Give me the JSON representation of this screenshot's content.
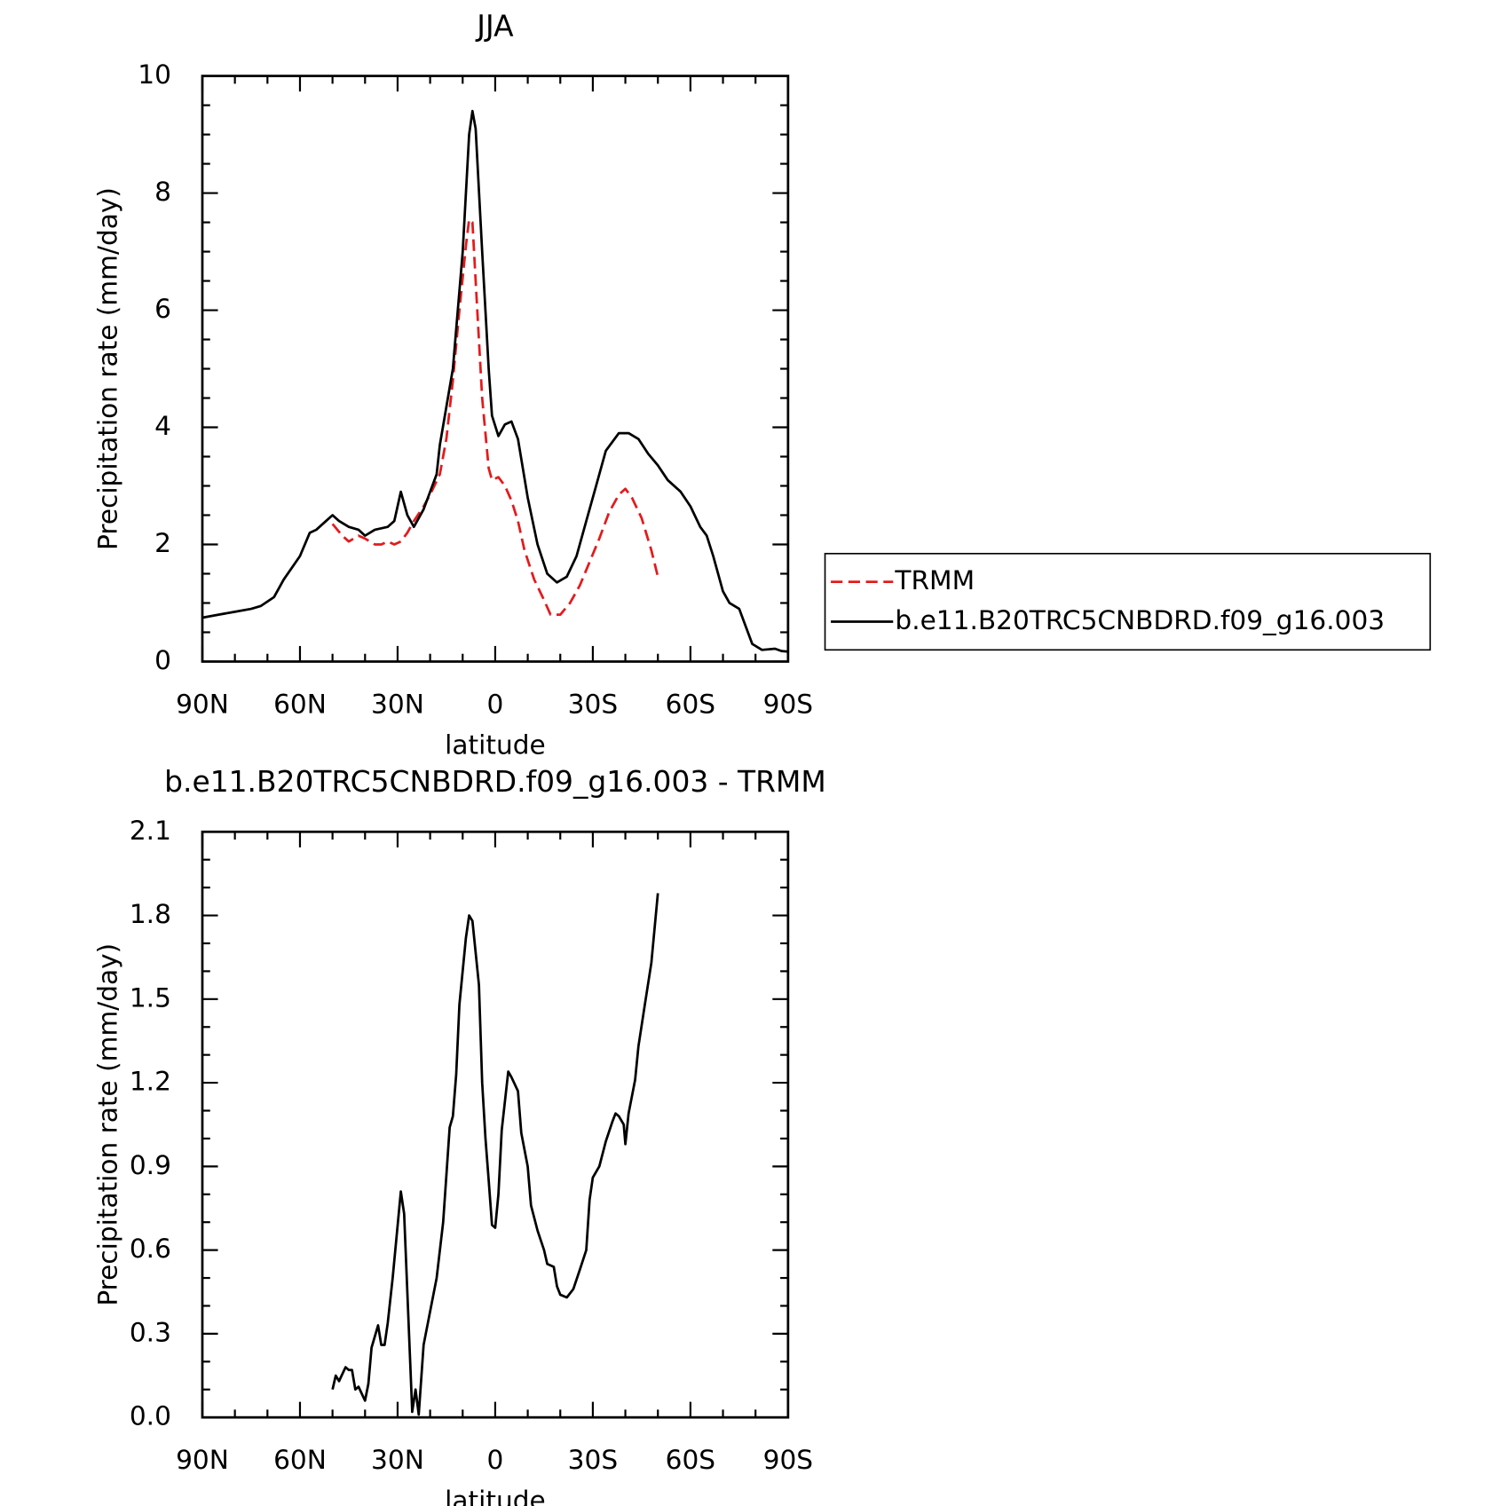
{
  "chart_data": [
    {
      "type": "line",
      "title": "JJA",
      "xlabel": "latitude",
      "ylabel": "Precipitation rate (mm/day)",
      "xlim": [
        90,
        -90
      ],
      "xticks": [
        {
          "value": 90,
          "label": "90N"
        },
        {
          "value": 60,
          "label": "60N"
        },
        {
          "value": 30,
          "label": "30N"
        },
        0,
        {
          "value": -30,
          "label": "30S"
        },
        {
          "value": -60,
          "label": "60S"
        },
        {
          "value": -90,
          "label": "90S"
        }
      ],
      "ylim": [
        0,
        10
      ],
      "yticks": [
        0,
        2,
        4,
        6,
        8,
        10
      ],
      "series": [
        {
          "name": "TRMM",
          "color": "#e41a1c",
          "dash": true,
          "x": [
            50,
            47,
            45,
            42,
            40,
            37,
            35,
            33,
            31,
            29,
            27,
            25,
            22,
            20,
            17,
            15,
            13,
            11,
            9,
            8,
            7,
            6,
            4,
            2,
            1,
            -1,
            -3,
            -5,
            -7,
            -9,
            -12,
            -15,
            -17,
            -20,
            -23,
            -26,
            -29,
            -32,
            -35,
            -38,
            -40,
            -42,
            -45,
            -48,
            -50
          ],
          "values": [
            2.35,
            2.15,
            2.05,
            2.15,
            2.1,
            2.0,
            2.0,
            2.05,
            2.0,
            2.05,
            2.2,
            2.4,
            2.65,
            2.85,
            3.2,
            3.8,
            4.8,
            6.0,
            7.1,
            7.55,
            7.5,
            6.5,
            4.5,
            3.3,
            3.1,
            3.15,
            3.0,
            2.75,
            2.4,
            1.9,
            1.4,
            1.05,
            0.8,
            0.8,
            1.0,
            1.3,
            1.7,
            2.1,
            2.55,
            2.85,
            2.95,
            2.8,
            2.45,
            1.9,
            1.45
          ]
        },
        {
          "name": "b.e11.B20TRC5CNBDRD.f09_g16.003",
          "color": "#000000",
          "dash": false,
          "x": [
            90,
            85,
            80,
            75,
            72,
            68,
            65,
            60,
            57,
            55,
            52,
            50,
            48,
            45,
            42,
            40,
            37,
            33,
            31,
            29,
            27,
            25,
            22,
            18,
            17,
            13,
            10,
            8,
            7,
            6,
            4,
            2,
            1,
            -1,
            -3,
            -5,
            -7,
            -10,
            -13,
            -16,
            -19,
            -22,
            -25,
            -28,
            -31,
            -34,
            -38,
            -41,
            -44,
            -47,
            -50,
            -53,
            -57,
            -60,
            -63,
            -65,
            -67,
            -70,
            -72,
            -75,
            -77,
            -79,
            -82,
            -86,
            -88,
            -90
          ],
          "values": [
            0.75,
            0.8,
            0.85,
            0.9,
            0.95,
            1.1,
            1.4,
            1.8,
            2.2,
            2.25,
            2.4,
            2.5,
            2.4,
            2.3,
            2.25,
            2.15,
            2.25,
            2.3,
            2.4,
            2.9,
            2.5,
            2.3,
            2.6,
            3.2,
            3.7,
            5.0,
            7.0,
            9.0,
            9.4,
            9.1,
            7.0,
            5.0,
            4.2,
            3.85,
            4.05,
            4.1,
            3.8,
            2.8,
            2.0,
            1.5,
            1.35,
            1.45,
            1.8,
            2.4,
            3.0,
            3.6,
            3.9,
            3.9,
            3.8,
            3.55,
            3.35,
            3.1,
            2.9,
            2.65,
            2.3,
            2.15,
            1.8,
            1.2,
            1.0,
            0.9,
            0.6,
            0.3,
            0.2,
            0.22,
            0.18,
            0.17
          ]
        }
      ]
    },
    {
      "type": "line",
      "title": "b.e11.B20TRC5CNBDRD.f09_g16.003 - TRMM",
      "xlabel": "latitude",
      "ylabel": "Precipitation rate (mm/day)",
      "xlim": [
        90,
        -90
      ],
      "xticks": [
        {
          "value": 90,
          "label": "90N"
        },
        {
          "value": 60,
          "label": "60N"
        },
        {
          "value": 30,
          "label": "30N"
        },
        0,
        {
          "value": -30,
          "label": "30S"
        },
        {
          "value": -60,
          "label": "60S"
        },
        {
          "value": -90,
          "label": "90S"
        }
      ],
      "ylim": [
        0,
        2.1
      ],
      "yticks": [
        {
          "value": 0,
          "label": "0.0"
        },
        0.3,
        0.6,
        0.9,
        1.2,
        1.5,
        1.8,
        2.1
      ],
      "series": [
        {
          "color": "#000000",
          "dash": false,
          "x": [
            50,
            49,
            48,
            46,
            45,
            44,
            43,
            42,
            40,
            39,
            38,
            36,
            35,
            34,
            33,
            31.5,
            29,
            28,
            25.5,
            24.5,
            23.5,
            22,
            20,
            18,
            16,
            14,
            13,
            12,
            11,
            9,
            8,
            7,
            5,
            4,
            3,
            2,
            1,
            0,
            -1,
            -2,
            -4,
            -5,
            -7,
            -8,
            -10,
            -11,
            -13,
            -15,
            -16,
            -18,
            -19,
            -20,
            -22,
            -24,
            -26,
            -28,
            -29,
            -30,
            -32,
            -34,
            -36,
            -37,
            -38,
            -39.5,
            -40,
            -41,
            -43,
            -44,
            -46,
            -48,
            -50
          ],
          "values": [
            0.1,
            0.15,
            0.13,
            0.18,
            0.17,
            0.17,
            0.1,
            0.11,
            0.06,
            0.12,
            0.25,
            0.33,
            0.26,
            0.26,
            0.34,
            0.5,
            0.81,
            0.73,
            0.02,
            0.1,
            0.01,
            0.26,
            0.38,
            0.5,
            0.7,
            1.04,
            1.08,
            1.23,
            1.48,
            1.72,
            1.8,
            1.78,
            1.55,
            1.2,
            1.0,
            0.85,
            0.69,
            0.68,
            0.8,
            1.03,
            1.24,
            1.22,
            1.17,
            1.02,
            0.9,
            0.76,
            0.67,
            0.6,
            0.55,
            0.54,
            0.47,
            0.44,
            0.43,
            0.46,
            0.53,
            0.6,
            0.78,
            0.86,
            0.9,
            0.99,
            1.06,
            1.09,
            1.08,
            1.05,
            0.98,
            1.09,
            1.21,
            1.33,
            1.48,
            1.63,
            1.88
          ]
        }
      ]
    }
  ]
}
